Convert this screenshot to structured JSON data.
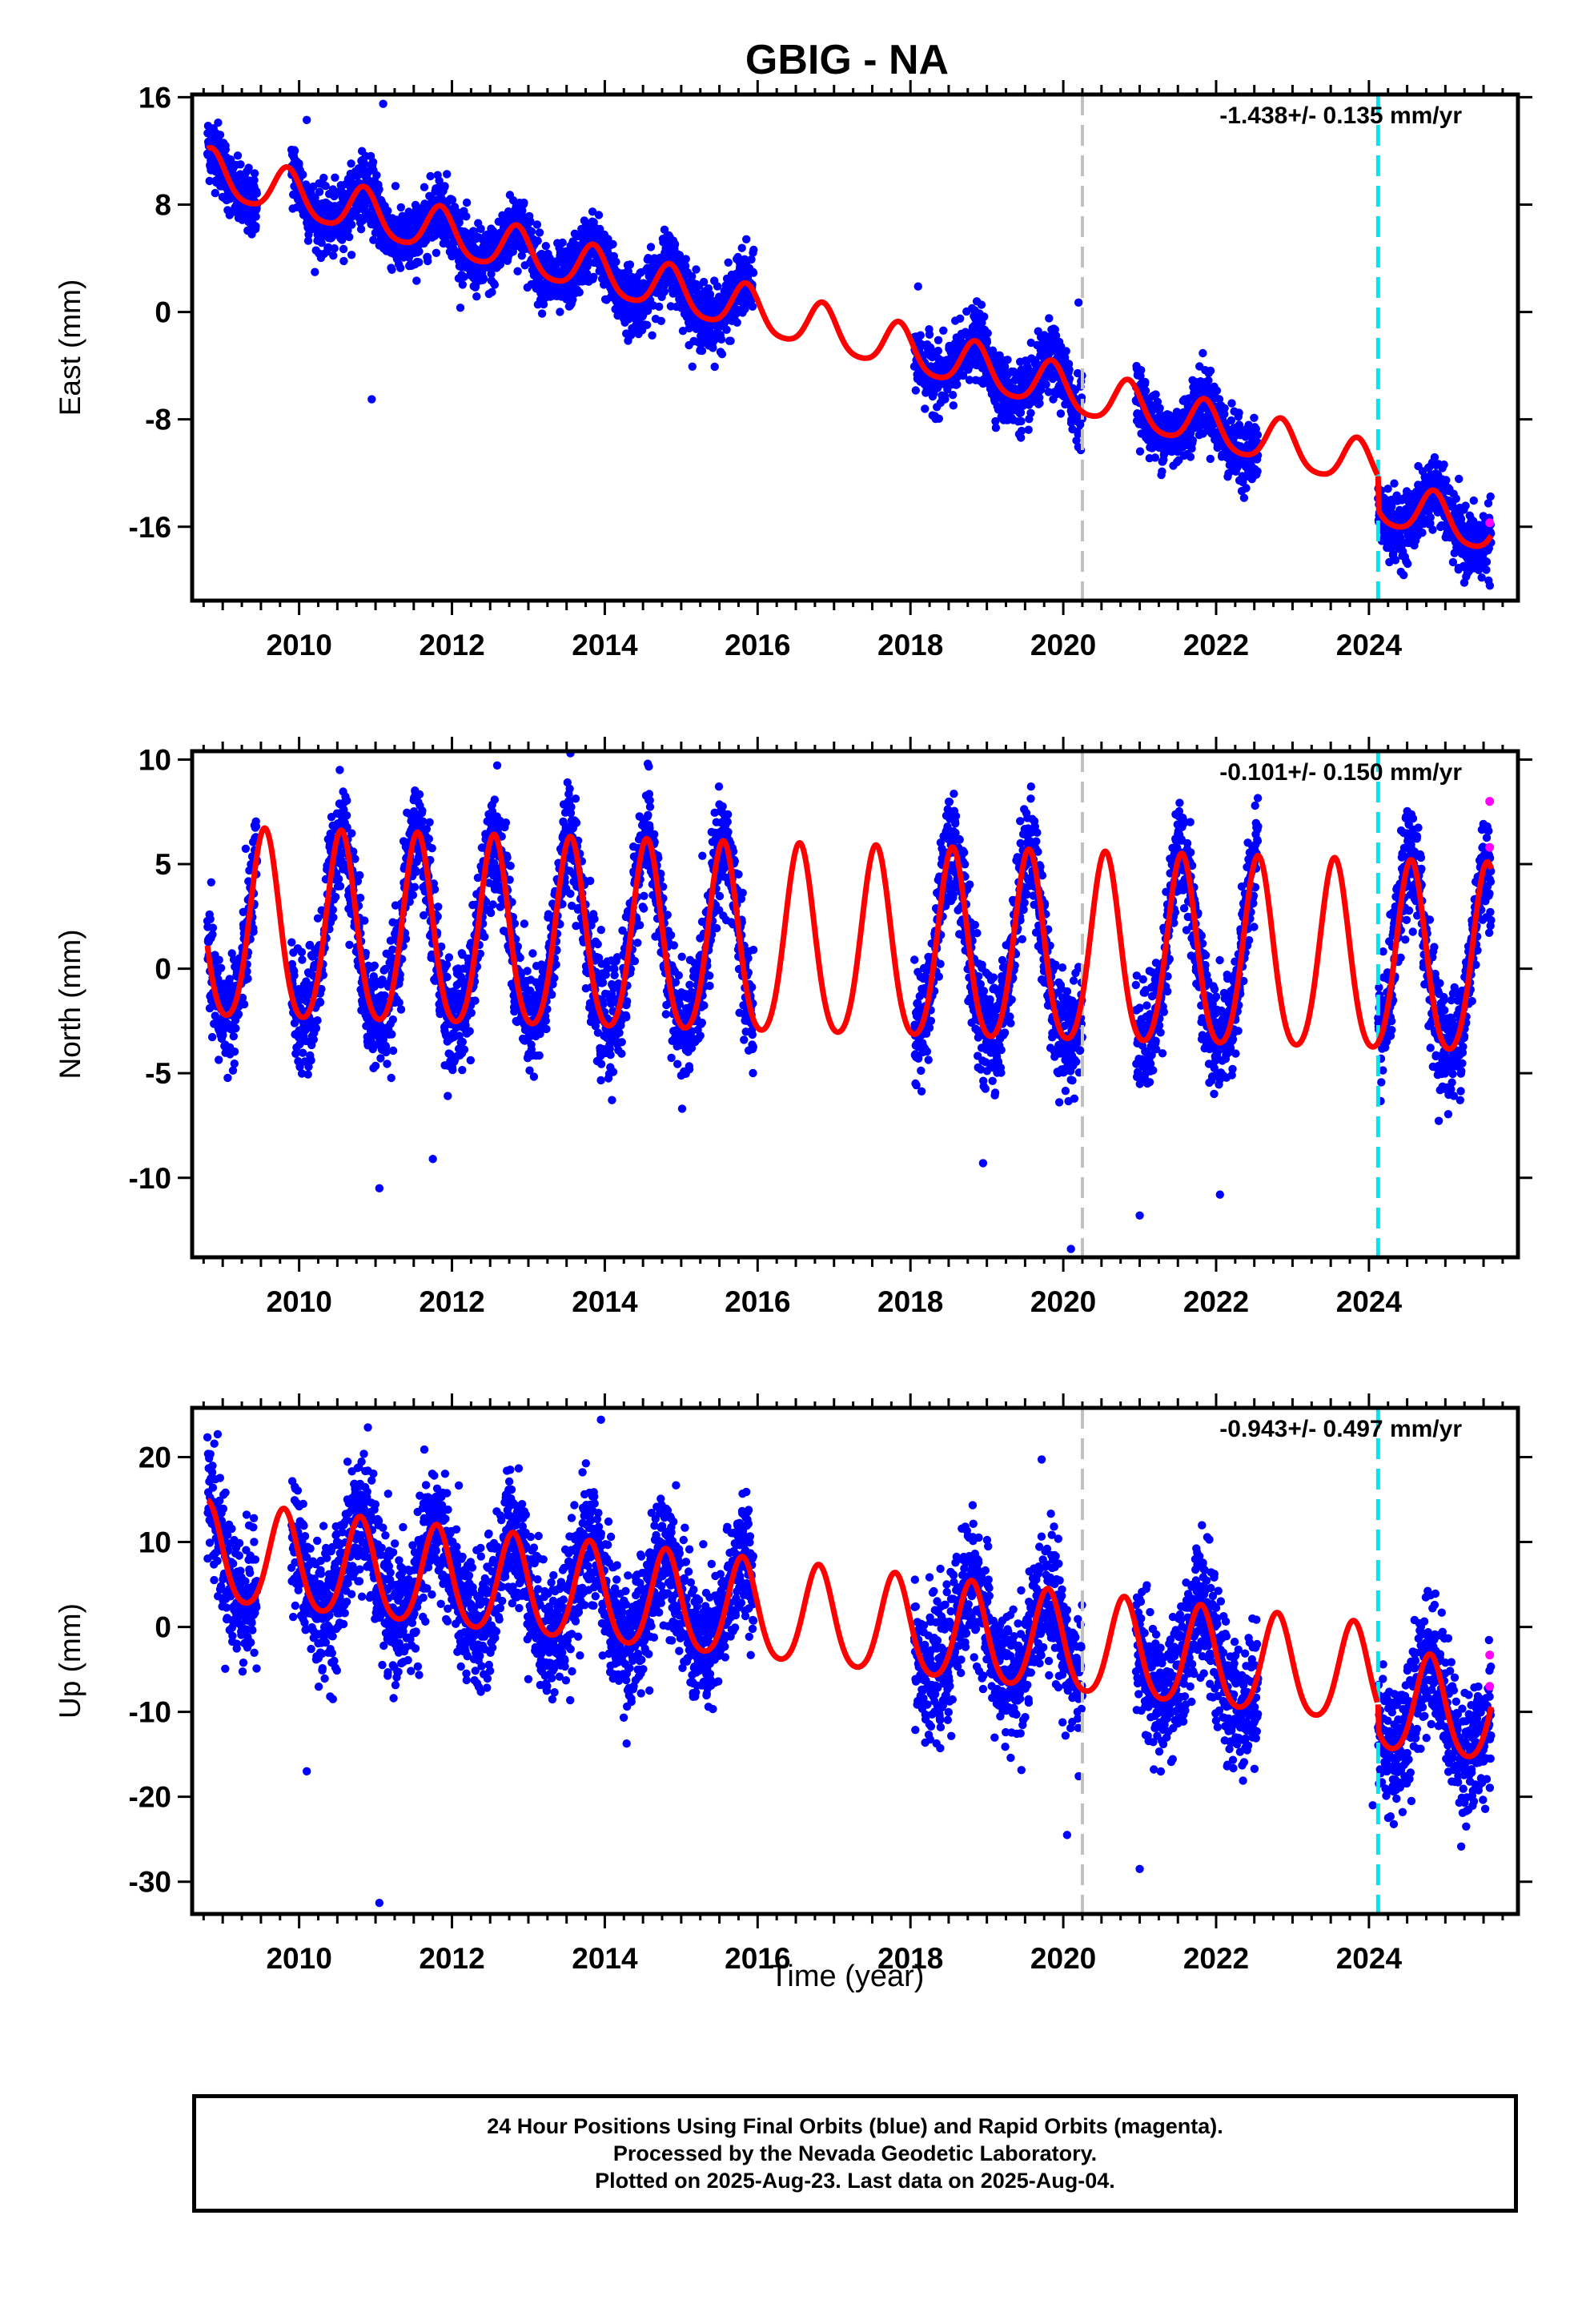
{
  "title": "GBIG - NA",
  "xlabel": "Time (year)",
  "colors": {
    "final_orbits": "#0000ff",
    "rapid_orbits": "#ff00ff",
    "model": "#ff0000",
    "dashed_grey": "#c0c0c0",
    "dashed_cyan": "#00e5ee"
  },
  "footer": {
    "line1": "24 Hour Positions Using Final Orbits (blue) and Rapid Orbits (magenta).",
    "line2": "Processed by the Nevada Geodetic Laboratory.",
    "line3": "Plotted on 2025-Aug-23. Last data on 2025-Aug-04."
  },
  "chart_data": [
    {
      "type": "scatter",
      "component": "East",
      "ylabel": "East (mm)",
      "rate_label": "-1.438+/- 0.135 mm/yr",
      "xlim": [
        2008.6,
        2025.95
      ],
      "ylim": [
        -21.5,
        16.2
      ],
      "xticks": [
        2010,
        2012,
        2014,
        2016,
        2018,
        2020,
        2022,
        2024
      ],
      "yticks": [
        16,
        8,
        0,
        -8,
        -16
      ],
      "vlines": {
        "grey_dashed": 2020.25,
        "cyan_dashed": 2024.12
      },
      "model": {
        "intercept_2008_8": 10.3,
        "rate": -1.438,
        "annual_amp": 1.7,
        "annual_phase_peak": 0.85,
        "semiannual_amp": 0.3,
        "offsets": [
          {
            "at": 2024.12,
            "dy": -2.5
          }
        ]
      },
      "data_segments": [
        [
          2008.8,
          2009.45
        ],
        [
          2009.9,
          2015.95
        ],
        [
          2018.05,
          2020.25
        ],
        [
          2020.95,
          2022.55
        ],
        [
          2024.12,
          2025.6
        ]
      ],
      "scatter_sd": 1.2,
      "outliers": [
        [
          2010.95,
          -6.5
        ],
        [
          2011.1,
          15.5
        ],
        [
          2010.1,
          14.3
        ],
        [
          2018.1,
          1.9
        ],
        [
          2020.2,
          0.7
        ]
      ],
      "rapid_points": [
        [
          2025.58,
          -15.7
        ]
      ]
    },
    {
      "type": "scatter",
      "component": "North",
      "ylabel": "North (mm)",
      "rate_label": "-0.101+/- 0.150 mm/yr",
      "xlim": [
        2008.6,
        2025.95
      ],
      "ylim": [
        -13.8,
        10.4
      ],
      "xticks": [
        2010,
        2012,
        2014,
        2016,
        2018,
        2020,
        2022,
        2024
      ],
      "yticks": [
        10,
        5,
        0,
        -5,
        -10
      ],
      "vlines": {
        "grey_dashed": 2020.25,
        "cyan_dashed": 2024.12
      },
      "model": {
        "intercept_2008_8": 1.7,
        "rate": -0.101,
        "annual_amp": 4.5,
        "annual_phase_peak": 0.55,
        "semiannual_amp": 0.6,
        "offsets": []
      },
      "data_segments": [
        [
          2008.8,
          2009.45
        ],
        [
          2009.9,
          2015.95
        ],
        [
          2018.05,
          2020.25
        ],
        [
          2020.95,
          2022.55
        ],
        [
          2024.12,
          2025.6
        ]
      ],
      "scatter_sd": 1.3,
      "outliers": [
        [
          2011.05,
          -10.5
        ],
        [
          2011.75,
          -9.1
        ],
        [
          2013.55,
          10.3
        ],
        [
          2020.1,
          -13.4
        ],
        [
          2021.0,
          -11.8
        ],
        [
          2022.05,
          -10.8
        ],
        [
          2018.95,
          -9.3
        ]
      ],
      "rapid_points": [
        [
          2025.58,
          8.0
        ],
        [
          2025.58,
          5.8
        ]
      ]
    },
    {
      "type": "scatter",
      "component": "Up",
      "ylabel": "Up (mm)",
      "rate_label": "-0.943+/- 0.497 mm/yr",
      "xlim": [
        2008.6,
        2025.95
      ],
      "ylim": [
        -33.8,
        25.8
      ],
      "xticks": [
        2010,
        2012,
        2014,
        2016,
        2018,
        2020,
        2022,
        2024
      ],
      "yticks": [
        20,
        10,
        0,
        -10,
        -20,
        -30
      ],
      "vlines": {
        "grey_dashed": 2020.25,
        "cyan_dashed": 2024.12
      },
      "model": {
        "intercept_2008_8": 8.3,
        "rate": -0.943,
        "annual_amp": 5.8,
        "annual_phase_peak": 0.8,
        "semiannual_amp": 0.8,
        "offsets": [
          {
            "at": 2024.12,
            "dy": -3.0
          }
        ]
      },
      "data_segments": [
        [
          2008.8,
          2009.45
        ],
        [
          2009.9,
          2015.95
        ],
        [
          2018.05,
          2020.25
        ],
        [
          2020.95,
          2022.55
        ],
        [
          2024.12,
          2025.6
        ]
      ],
      "scatter_sd": 3.8,
      "outliers": [
        [
          2011.05,
          -32.5
        ],
        [
          2010.9,
          23.5
        ],
        [
          2013.95,
          24.4
        ],
        [
          2020.05,
          -24.5
        ],
        [
          2021.0,
          -28.5
        ],
        [
          2010.1,
          -17.0
        ],
        [
          2024.05,
          -21.0
        ]
      ],
      "rapid_points": [
        [
          2025.58,
          -3.3
        ],
        [
          2025.58,
          -7.0
        ]
      ]
    }
  ]
}
